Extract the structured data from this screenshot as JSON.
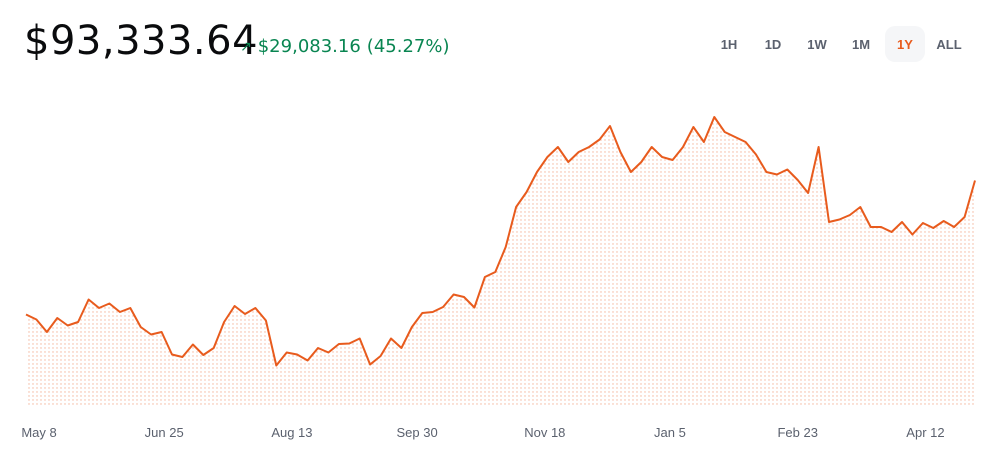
{
  "header": {
    "price": "$93,333.64",
    "change_arrow": "↗",
    "change_amount": "$29,083.16",
    "change_percent": "(45.27%)",
    "change_color": "#098551"
  },
  "ranges": [
    {
      "label": "1H",
      "active": false
    },
    {
      "label": "1D",
      "active": false
    },
    {
      "label": "1W",
      "active": false
    },
    {
      "label": "1M",
      "active": false
    },
    {
      "label": "1Y",
      "active": true
    },
    {
      "label": "ALL",
      "active": false
    }
  ],
  "chart_data": {
    "type": "area",
    "line_color": "#e85b1d",
    "fill_color": "#fbe9e0",
    "grid": false,
    "x_tick_labels": [
      "May 8",
      "Jun 25",
      "Aug 13",
      "Sep 30",
      "Nov 18",
      "Jan 5",
      "Feb 23",
      "Apr 12"
    ],
    "x_tick_positions": [
      5,
      53,
      102,
      150,
      199,
      247,
      296,
      345
    ],
    "x": [
      0,
      4,
      8,
      12,
      16,
      20,
      24,
      28,
      32,
      36,
      40,
      44,
      48,
      52,
      56,
      60,
      64,
      68,
      72,
      76,
      80,
      84,
      88,
      92,
      96,
      100,
      104,
      108,
      112,
      116,
      120,
      124,
      128,
      132,
      136,
      140,
      144,
      148,
      152,
      156,
      160,
      164,
      168,
      172,
      176,
      180,
      184,
      188,
      192,
      196,
      200,
      204,
      208,
      212,
      216,
      220,
      224,
      228,
      232,
      236,
      240,
      244,
      248,
      252,
      256,
      260,
      264,
      268,
      272,
      276,
      280,
      284,
      288,
      292,
      296,
      300,
      304,
      308,
      312,
      316,
      320,
      324,
      328,
      332,
      336,
      340,
      344,
      348,
      352,
      356,
      360,
      364
    ],
    "values": [
      66500,
      65500,
      63000,
      65800,
      64300,
      65000,
      69500,
      67800,
      68700,
      67000,
      67800,
      64000,
      62500,
      63000,
      58500,
      58000,
      60500,
      58400,
      59800,
      65000,
      68200,
      66600,
      67800,
      65300,
      56300,
      58900,
      58500,
      57300,
      59800,
      58900,
      60600,
      60700,
      61700,
      56500,
      58200,
      61700,
      59800,
      64000,
      66800,
      67000,
      68000,
      70500,
      70000,
      67900,
      74000,
      75000,
      80000,
      88000,
      91000,
      95000,
      98000,
      100000,
      97000,
      99000,
      100000,
      101500,
      104200,
      99000,
      95000,
      97000,
      100000,
      98000,
      97400,
      100000,
      104000,
      101000,
      106000,
      103000,
      102000,
      101000,
      98500,
      95000,
      94500,
      95500,
      93400,
      90800,
      100000,
      85000,
      85500,
      86400,
      88000,
      84000,
      84000,
      83000,
      85000,
      82500,
      84800,
      83800,
      85200,
      84000,
      86000,
      93300
    ],
    "ylim": [
      48000,
      108000
    ]
  }
}
